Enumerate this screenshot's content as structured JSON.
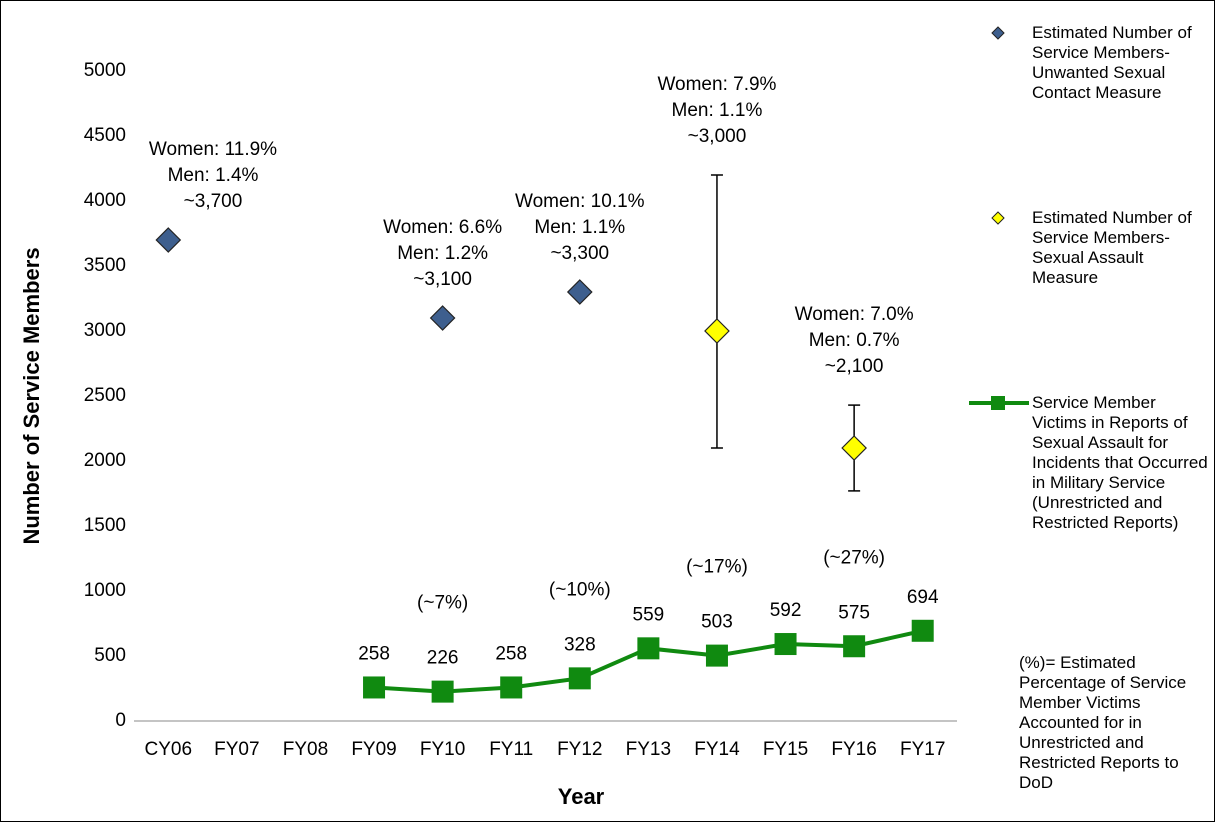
{
  "chart_data": {
    "type": "scatter-line",
    "xlabel": "Year",
    "ylabel": "Number of Service Members",
    "categories": [
      "CY06",
      "FY07",
      "FY08",
      "FY09",
      "FY10",
      "FY11",
      "FY12",
      "FY13",
      "FY14",
      "FY15",
      "FY16",
      "FY17"
    ],
    "ylim": [
      0,
      5000
    ],
    "yticks": [
      0,
      500,
      1000,
      1500,
      2000,
      2500,
      3000,
      3500,
      4000,
      4500,
      5000
    ],
    "grid": false,
    "legend": "right",
    "series": [
      {
        "name": "Estimated Number of Service Members- Unwanted Sexual Contact Measure",
        "kind": "diamond",
        "color": "#3e5f8e",
        "values": [
          3700,
          null,
          null,
          null,
          3100,
          null,
          3300,
          null,
          null,
          null,
          null,
          null
        ],
        "point_labels": [
          [
            "Women: 11.9%",
            "Men: 1.4%",
            "~3,700"
          ],
          null,
          null,
          null,
          [
            "Women: 6.6%",
            "Men: 1.2%",
            "~3,100"
          ],
          null,
          [
            "Women: 10.1%",
            "Men: 1.1%",
            "~3,300"
          ],
          null,
          null,
          null,
          null,
          null
        ]
      },
      {
        "name": "Estimated Number of Service Members- Sexual Assault Measure",
        "kind": "diamond",
        "color": "#ffff00",
        "values": [
          null,
          null,
          null,
          null,
          null,
          null,
          null,
          null,
          3000,
          null,
          2100,
          null
        ],
        "error_minus": [
          null,
          null,
          null,
          null,
          null,
          null,
          null,
          null,
          900,
          null,
          330,
          null
        ],
        "error_plus": [
          null,
          null,
          null,
          null,
          null,
          null,
          null,
          null,
          1200,
          null,
          330,
          null
        ],
        "point_labels": [
          null,
          null,
          null,
          null,
          null,
          null,
          null,
          null,
          [
            "Women: 7.9%",
            "Men: 1.1%",
            "~3,000"
          ],
          null,
          [
            "Women: 7.0%",
            "Men: 0.7%",
            "~2,100"
          ],
          null
        ]
      },
      {
        "name": "Service Member Victims in Reports of Sexual Assault for Incidents that Occurred in Military Service (Unrestricted and Restricted Reports)",
        "kind": "line",
        "color": "#108a10",
        "values": [
          null,
          null,
          null,
          258,
          226,
          258,
          328,
          559,
          503,
          592,
          575,
          694
        ],
        "percent_labels": [
          null,
          null,
          null,
          null,
          "(~7%)",
          null,
          "(~10%)",
          null,
          "(~17%)",
          null,
          "(~27%)",
          null
        ]
      }
    ],
    "legend_note": "(%)= Estimated Percentage of Service Member Victims Accounted for in Unrestricted and Restricted Reports to DoD"
  }
}
